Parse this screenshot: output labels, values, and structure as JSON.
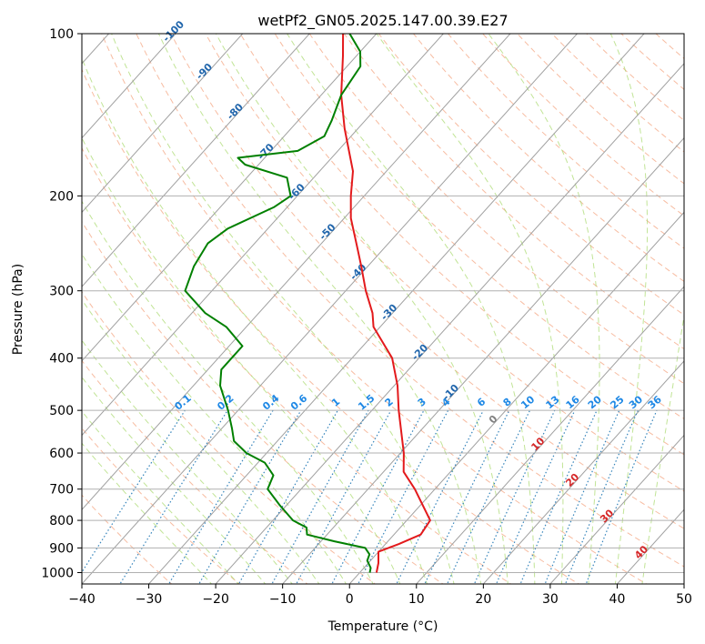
{
  "chart_data": {
    "type": "line",
    "title": "wetPf2_GN05.2025.147.00.39.E27",
    "xlabel": "Temperature (°C)",
    "ylabel": "Pressure (hPa)",
    "xlim": [
      -40,
      50
    ],
    "ylim": [
      1050,
      100
    ],
    "y_scale": "log",
    "skew": "skew-T log-P diagram",
    "x_ticks": [
      -40,
      -30,
      -20,
      -10,
      0,
      10,
      20,
      30,
      40,
      50
    ],
    "y_ticks": [
      100,
      200,
      300,
      400,
      500,
      600,
      700,
      800,
      900,
      1000
    ],
    "grid": true,
    "series": [
      {
        "color": "#e31a1c",
        "points": [
          {
            "p": 1000,
            "t": 2.5
          },
          {
            "p": 960,
            "t": 1.5
          },
          {
            "p": 915,
            "t": 0.0
          },
          {
            "p": 885,
            "t": 2.0
          },
          {
            "p": 850,
            "t": 4.0
          },
          {
            "p": 800,
            "t": 3.5
          },
          {
            "p": 700,
            "t": -3.0
          },
          {
            "p": 650,
            "t": -7.0
          },
          {
            "p": 600,
            "t": -9.5
          },
          {
            "p": 500,
            "t": -16.0
          },
          {
            "p": 450,
            "t": -19.5
          },
          {
            "p": 400,
            "t": -24.0
          },
          {
            "p": 350,
            "t": -31.0
          },
          {
            "p": 330,
            "t": -33.0
          },
          {
            "p": 300,
            "t": -37.0
          },
          {
            "p": 270,
            "t": -41.0
          },
          {
            "p": 250,
            "t": -44.0
          },
          {
            "p": 220,
            "t": -49.0
          },
          {
            "p": 200,
            "t": -52.0
          },
          {
            "p": 180,
            "t": -55.0
          },
          {
            "p": 150,
            "t": -62.0
          },
          {
            "p": 130,
            "t": -67.0
          },
          {
            "p": 110,
            "t": -72.0
          },
          {
            "p": 100,
            "t": -75.0
          }
        ]
      },
      {
        "color": "#008000",
        "points": [
          {
            "p": 1000,
            "t": 1.5
          },
          {
            "p": 980,
            "t": 1.0
          },
          {
            "p": 950,
            "t": -0.5
          },
          {
            "p": 925,
            "t": -1.0
          },
          {
            "p": 900,
            "t": -2.5
          },
          {
            "p": 875,
            "t": -8.0
          },
          {
            "p": 850,
            "t": -13.0
          },
          {
            "p": 825,
            "t": -14.0
          },
          {
            "p": 800,
            "t": -17.0
          },
          {
            "p": 750,
            "t": -21.0
          },
          {
            "p": 700,
            "t": -25.0
          },
          {
            "p": 660,
            "t": -26.0
          },
          {
            "p": 625,
            "t": -29.0
          },
          {
            "p": 600,
            "t": -33.0
          },
          {
            "p": 570,
            "t": -36.5
          },
          {
            "p": 540,
            "t": -38.5
          },
          {
            "p": 500,
            "t": -41.5
          },
          {
            "p": 450,
            "t": -46.0
          },
          {
            "p": 420,
            "t": -48.0
          },
          {
            "p": 380,
            "t": -48.0
          },
          {
            "p": 350,
            "t": -53.0
          },
          {
            "p": 330,
            "t": -58.0
          },
          {
            "p": 300,
            "t": -64.0
          },
          {
            "p": 270,
            "t": -66.0
          },
          {
            "p": 245,
            "t": -67.0
          },
          {
            "p": 230,
            "t": -66.0
          },
          {
            "p": 210,
            "t": -62.0
          },
          {
            "p": 200,
            "t": -61.0
          },
          {
            "p": 185,
            "t": -64.0
          },
          {
            "p": 175,
            "t": -72.0
          },
          {
            "p": 170,
            "t": -74.0
          },
          {
            "p": 165,
            "t": -66.0
          },
          {
            "p": 155,
            "t": -64.0
          },
          {
            "p": 145,
            "t": -65.0
          },
          {
            "p": 130,
            "t": -67.0
          },
          {
            "p": 115,
            "t": -68.0
          },
          {
            "p": 108,
            "t": -70.0
          },
          {
            "p": 100,
            "t": -74.0
          }
        ]
      }
    ],
    "isotherm_labels": [
      "-100",
      "-90",
      "-80",
      "-70",
      "-60",
      "-50",
      "-40",
      "-30",
      "-20",
      "-10",
      "0",
      "10",
      "20",
      "30",
      "40"
    ],
    "mixing_ratio_labels": [
      "0.1",
      "0.2",
      "0.4",
      "0.6",
      "1",
      "1.5",
      "2",
      "3",
      "4",
      "6",
      "8",
      "10",
      "13",
      "16",
      "20",
      "25",
      "30",
      "36"
    ]
  }
}
